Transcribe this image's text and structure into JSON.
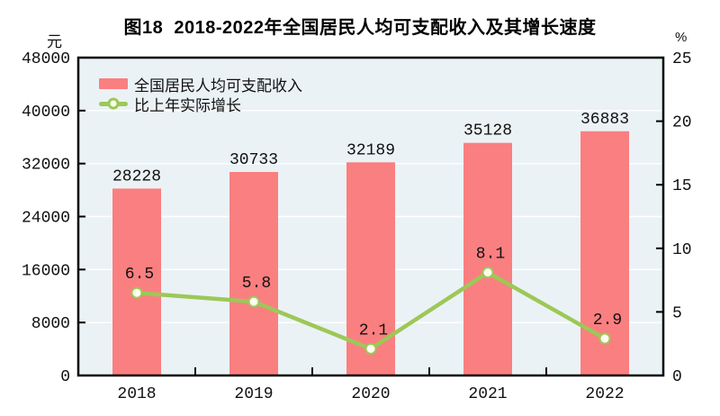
{
  "page": {
    "title": "图18  2018-2022年全国居民人均可支配收入及其增长速度"
  },
  "legend": {
    "bar_label": "全国居民人均可支配收入",
    "line_label": "比上年实际增长"
  },
  "colors": {
    "bar": "#FA7F80",
    "line": "#9CC857",
    "marker_fill": "#FFFEF2",
    "plot_bg": "#EBF2F6",
    "grid": "#FFFFFF",
    "axis": "#000000",
    "text": "#111111"
  },
  "chart_data": {
    "type": "bar",
    "subtype": "bar+line combo, dual axis",
    "title": "图18  2018-2022年全国居民人均可支配收入及其增长速度",
    "categories": [
      "2018",
      "2019",
      "2020",
      "2021",
      "2022"
    ],
    "series": [
      {
        "name": "全国居民人均可支配收入",
        "type": "bar",
        "axis": "left",
        "unit": "元",
        "values": [
          28228,
          30733,
          32189,
          35128,
          36883
        ],
        "labels": [
          "28228",
          "30733",
          "32189",
          "35128",
          "36883"
        ]
      },
      {
        "name": "比上年实际增长",
        "type": "line",
        "axis": "right",
        "unit": "%",
        "values": [
          6.5,
          5.8,
          2.1,
          8.1,
          2.9
        ],
        "labels": [
          "6.5",
          "5.8",
          "2.1",
          "8.1",
          "2.9"
        ]
      }
    ],
    "left_axis": {
      "unit": "元",
      "min": 0,
      "max": 48000,
      "step": 8000,
      "tick_labels": [
        "0",
        "8000",
        "16000",
        "24000",
        "32000",
        "40000",
        "48000"
      ]
    },
    "right_axis": {
      "unit": "%",
      "min": 0,
      "max": 25,
      "step": 5,
      "tick_labels": [
        "0",
        "5",
        "10",
        "15",
        "20",
        "25"
      ]
    },
    "grid": true,
    "legend_position": "top-left"
  }
}
